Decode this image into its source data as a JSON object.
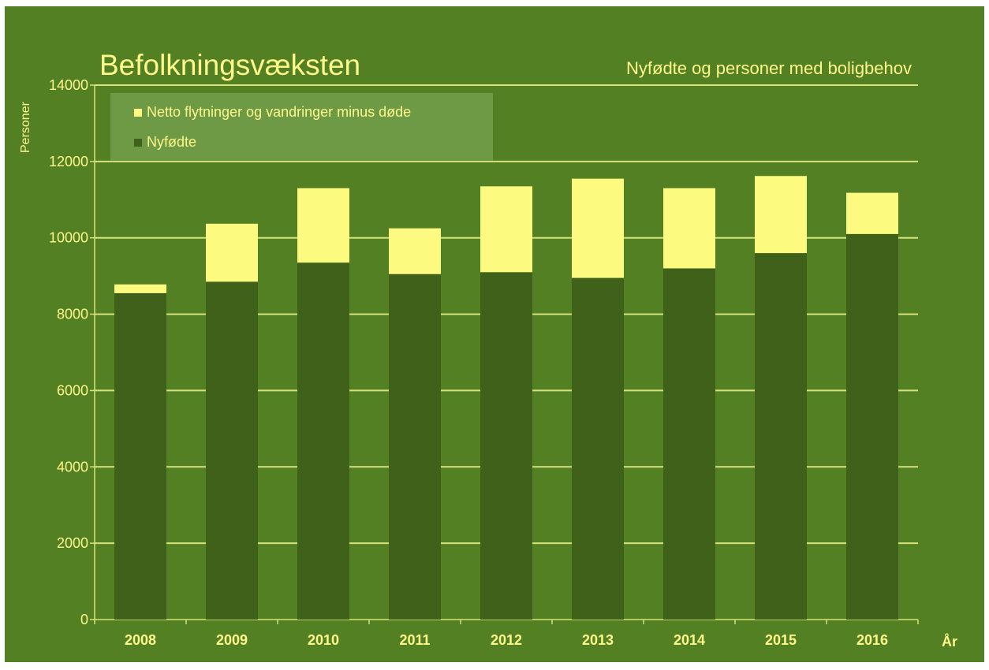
{
  "colors": {
    "background": "#548024",
    "text": "#fdf88a",
    "gridline": "#d7e27a",
    "nyfodte": "#3f6119",
    "netto": "#fcfb7f",
    "legend_bg": "#6f9a45"
  },
  "chart_data": {
    "type": "bar",
    "stacked": true,
    "title": "Befolkningsvæksten",
    "subtitle": "Nyfødte og personer med boligbehov",
    "ylabel": "Personer",
    "xlabel": "År",
    "categories": [
      "2008",
      "2009",
      "2010",
      "2011",
      "2012",
      "2013",
      "2014",
      "2015",
      "2016"
    ],
    "series": [
      {
        "name": "Nyfødte",
        "values": [
          8550,
          8850,
          9350,
          9050,
          9100,
          8950,
          9200,
          9600,
          10100
        ]
      },
      {
        "name": "Netto flytninger og vandringer minus døde",
        "values": [
          230,
          1520,
          1950,
          1200,
          2250,
          2600,
          2100,
          2020,
          1080
        ]
      }
    ],
    "ylim": [
      0,
      14000
    ],
    "yticks": [
      0,
      2000,
      4000,
      6000,
      8000,
      10000,
      12000,
      14000
    ],
    "grid": true,
    "legend": {
      "position": "top-left",
      "items": [
        {
          "label": "Netto flytninger og vandringer minus døde",
          "color": "#fcfb7f"
        },
        {
          "label": "Nyfødte",
          "color": "#3f6119"
        }
      ]
    }
  }
}
